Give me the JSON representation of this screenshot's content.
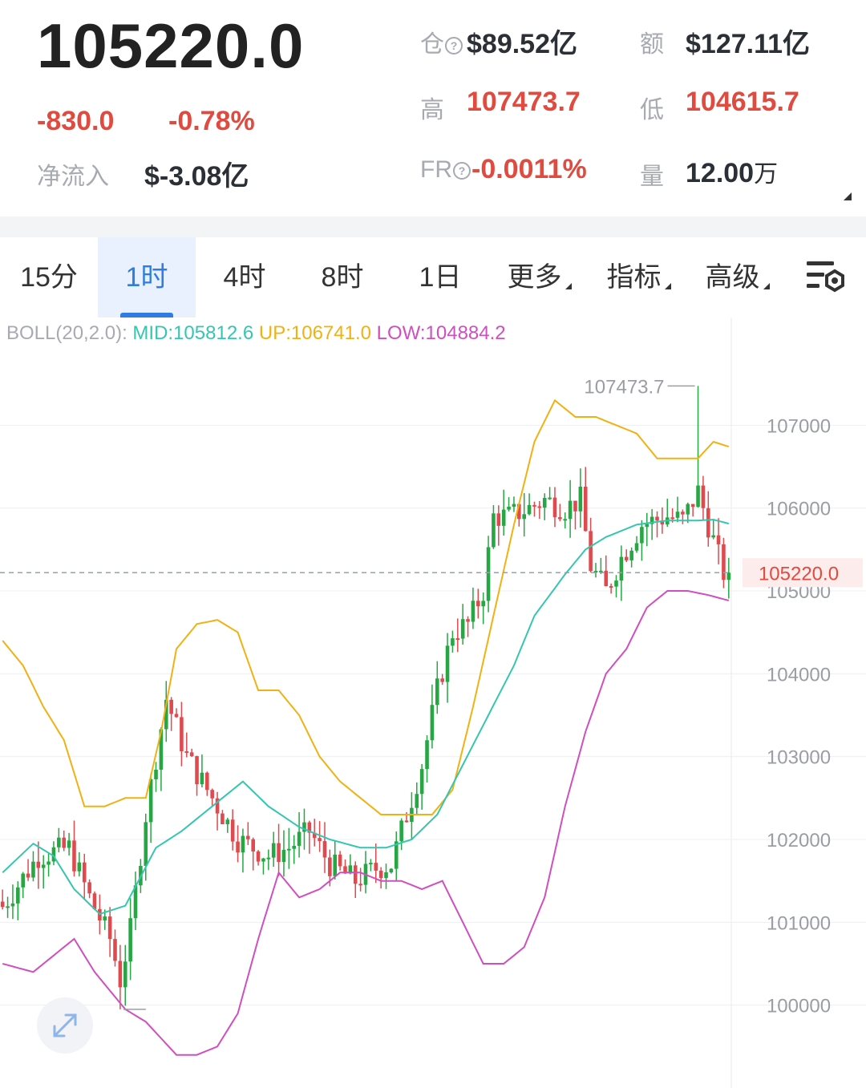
{
  "header": {
    "last_price": "105220.0",
    "change": "-830.0",
    "change_pct": "-0.78%",
    "net_inflow_label": "净流入",
    "net_inflow_value": "$-3.08亿",
    "oi_label": "仓",
    "oi_value": "$89.52亿",
    "turnover_label": "额",
    "turnover_value": "$127.11亿",
    "high_label": "高",
    "high_value": "107473.7",
    "low_label": "低",
    "low_value": "104615.7",
    "fr_label": "FR",
    "fr_value": "-0.0011%",
    "volume_label": "量",
    "volume_value": "12.00",
    "volume_unit": "万"
  },
  "tabs": [
    {
      "label": "15分",
      "active": false
    },
    {
      "label": "1时",
      "active": true
    },
    {
      "label": "4时",
      "active": false
    },
    {
      "label": "8时",
      "active": false
    },
    {
      "label": "1日",
      "active": false
    },
    {
      "label": "更多",
      "active": false,
      "dropdown": true
    },
    {
      "label": "指标",
      "active": false,
      "dropdown": true
    },
    {
      "label": "高级",
      "active": false,
      "dropdown": true
    }
  ],
  "indicator": {
    "name": "BOLL(20,2.0):",
    "mid": "MID:105812.6",
    "up": "UP:106741.0",
    "low": "LOW:104884.2"
  },
  "colors": {
    "up_candle": "#27a644",
    "down_candle": "#e04a4f",
    "mid_line": "#34c6b1",
    "upper_band": "#f1b112",
    "lower_band": "#cf4fc0",
    "active_tab": "#2f7de1"
  },
  "icons": [
    "help-icon",
    "settings-icon",
    "expand-icon"
  ],
  "chart_data": {
    "type": "candlestick",
    "interval": "1h",
    "y_ticks": [
      100000,
      101000,
      102000,
      103000,
      104000,
      105000,
      106000,
      107000
    ],
    "y_tick_labels": [
      "100000",
      "101000",
      "102000",
      "103000",
      "104000",
      "105000",
      "106000",
      "107000"
    ],
    "ylim": [
      99000,
      108300
    ],
    "last_price_label": "105220.0",
    "last_price": 105220.0,
    "high_annotation": "107473.7",
    "high_value": 107473.7,
    "low_value": 99950,
    "grid": true,
    "keypoints": [
      [
        0,
        101100
      ],
      [
        8,
        101800
      ],
      [
        14,
        101900
      ],
      [
        18,
        101300
      ],
      [
        22,
        100800
      ],
      [
        24,
        100300
      ],
      [
        26,
        100900
      ],
      [
        29,
        102300
      ],
      [
        33,
        103700
      ],
      [
        37,
        103000
      ],
      [
        41,
        102600
      ],
      [
        47,
        102000
      ],
      [
        53,
        101800
      ],
      [
        57,
        101900
      ],
      [
        61,
        102100
      ],
      [
        65,
        101700
      ],
      [
        70,
        101500
      ],
      [
        74,
        101650
      ],
      [
        77,
        101700
      ],
      [
        80,
        102300
      ],
      [
        83,
        102900
      ],
      [
        86,
        103800
      ],
      [
        89,
        104500
      ],
      [
        92,
        104600
      ],
      [
        95,
        105000
      ],
      [
        97,
        105900
      ],
      [
        100,
        105900
      ],
      [
        104,
        106000
      ],
      [
        107,
        106100
      ],
      [
        111,
        106000
      ],
      [
        114,
        106100
      ],
      [
        116,
        105300
      ],
      [
        119,
        105000
      ],
      [
        122,
        105400
      ],
      [
        126,
        105800
      ],
      [
        131,
        105900
      ],
      [
        134,
        105850
      ],
      [
        137,
        106200
      ],
      [
        139,
        105800
      ],
      [
        142,
        105220
      ]
    ],
    "boll_mid": [
      [
        0,
        101600
      ],
      [
        6,
        101950
      ],
      [
        10,
        101800
      ],
      [
        14,
        101400
      ],
      [
        19,
        101100
      ],
      [
        24,
        101200
      ],
      [
        30,
        101900
      ],
      [
        35,
        102100
      ],
      [
        41,
        102400
      ],
      [
        47,
        102700
      ],
      [
        52,
        102400
      ],
      [
        58,
        102150
      ],
      [
        64,
        102000
      ],
      [
        70,
        101900
      ],
      [
        75,
        101900
      ],
      [
        80,
        102000
      ],
      [
        85,
        102300
      ],
      [
        90,
        102900
      ],
      [
        95,
        103500
      ],
      [
        100,
        104100
      ],
      [
        104,
        104700
      ],
      [
        110,
        105200
      ],
      [
        114,
        105500
      ],
      [
        118,
        105650
      ],
      [
        124,
        105800
      ],
      [
        130,
        105850
      ],
      [
        136,
        105850
      ],
      [
        139,
        105860
      ],
      [
        142,
        105812
      ]
    ],
    "boll_upper": [
      [
        0,
        104400
      ],
      [
        4,
        104100
      ],
      [
        8,
        103600
      ],
      [
        12,
        103200
      ],
      [
        16,
        102400
      ],
      [
        20,
        102400
      ],
      [
        24,
        102500
      ],
      [
        28,
        102500
      ],
      [
        31,
        103300
      ],
      [
        34,
        104300
      ],
      [
        38,
        104600
      ],
      [
        42,
        104650
      ],
      [
        46,
        104500
      ],
      [
        50,
        103800
      ],
      [
        54,
        103800
      ],
      [
        58,
        103500
      ],
      [
        62,
        103000
      ],
      [
        66,
        102700
      ],
      [
        70,
        102500
      ],
      [
        74,
        102300
      ],
      [
        80,
        102300
      ],
      [
        84,
        102300
      ],
      [
        88,
        102600
      ],
      [
        92,
        103600
      ],
      [
        96,
        104700
      ],
      [
        100,
        105800
      ],
      [
        104,
        106800
      ],
      [
        108,
        107300
      ],
      [
        112,
        107100
      ],
      [
        116,
        107100
      ],
      [
        120,
        107000
      ],
      [
        124,
        106900
      ],
      [
        128,
        106600
      ],
      [
        132,
        106600
      ],
      [
        136,
        106600
      ],
      [
        139,
        106800
      ],
      [
        142,
        106741
      ]
    ],
    "boll_lower": [
      [
        0,
        100500
      ],
      [
        6,
        100400
      ],
      [
        10,
        100600
      ],
      [
        14,
        100800
      ],
      [
        18,
        100400
      ],
      [
        24,
        99950
      ],
      [
        28,
        99800
      ],
      [
        34,
        99400
      ],
      [
        38,
        99400
      ],
      [
        42,
        99500
      ],
      [
        46,
        99900
      ],
      [
        50,
        100800
      ],
      [
        54,
        101600
      ],
      [
        58,
        101300
      ],
      [
        62,
        101400
      ],
      [
        66,
        101600
      ],
      [
        70,
        101600
      ],
      [
        74,
        101500
      ],
      [
        78,
        101500
      ],
      [
        82,
        101400
      ],
      [
        86,
        101500
      ],
      [
        90,
        101000
      ],
      [
        94,
        100500
      ],
      [
        98,
        100500
      ],
      [
        102,
        100700
      ],
      [
        106,
        101300
      ],
      [
        110,
        102400
      ],
      [
        114,
        103300
      ],
      [
        118,
        104000
      ],
      [
        122,
        104300
      ],
      [
        126,
        104800
      ],
      [
        130,
        105000
      ],
      [
        134,
        105000
      ],
      [
        138,
        104950
      ],
      [
        142,
        104884
      ]
    ]
  }
}
